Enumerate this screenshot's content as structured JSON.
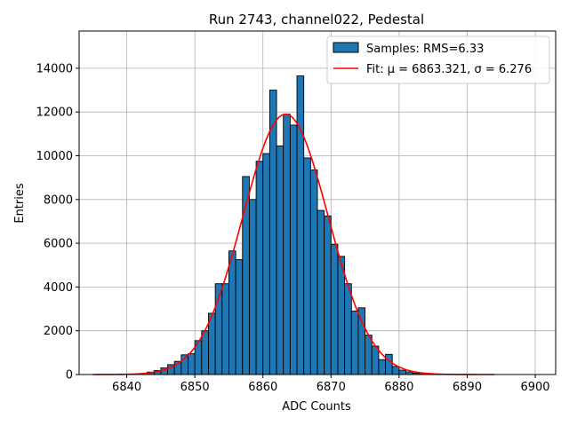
{
  "chart_data": {
    "type": "bar",
    "title": "Run 2743, channel022, Pedestal",
    "xlabel": "ADC Counts",
    "ylabel": "Entries",
    "xlim": [
      6833,
      6903
    ],
    "ylim": [
      0,
      15700
    ],
    "xticks": [
      6840,
      6850,
      6860,
      6870,
      6880,
      6890,
      6900
    ],
    "yticks": [
      0,
      2000,
      4000,
      6000,
      8000,
      10000,
      12000,
      14000
    ],
    "grid": true,
    "legend_position": "top-right",
    "histogram": {
      "name": "Samples: RMS=6.33",
      "color": "#1f77b4",
      "bin_start": 6840,
      "bin_width": 1,
      "counts": [
        5,
        15,
        50,
        110,
        180,
        300,
        450,
        600,
        900,
        950,
        1550,
        2000,
        2800,
        4150,
        4150,
        5650,
        5250,
        9050,
        8000,
        9750,
        10100,
        13000,
        10450,
        11900,
        11400,
        13650,
        9900,
        9350,
        7500,
        7250,
        5950,
        5400,
        4150,
        2900,
        3050,
        1800,
        1300,
        680,
        920,
        370,
        200,
        120,
        60,
        25,
        10
      ]
    },
    "fit": {
      "name": "Fit: μ = 6863.321, σ = 6.276",
      "color": "#ff0000",
      "mu": 6863.321,
      "sigma": 6.276,
      "amplitude": 11900,
      "x_range": [
        6835,
        6894
      ]
    }
  }
}
